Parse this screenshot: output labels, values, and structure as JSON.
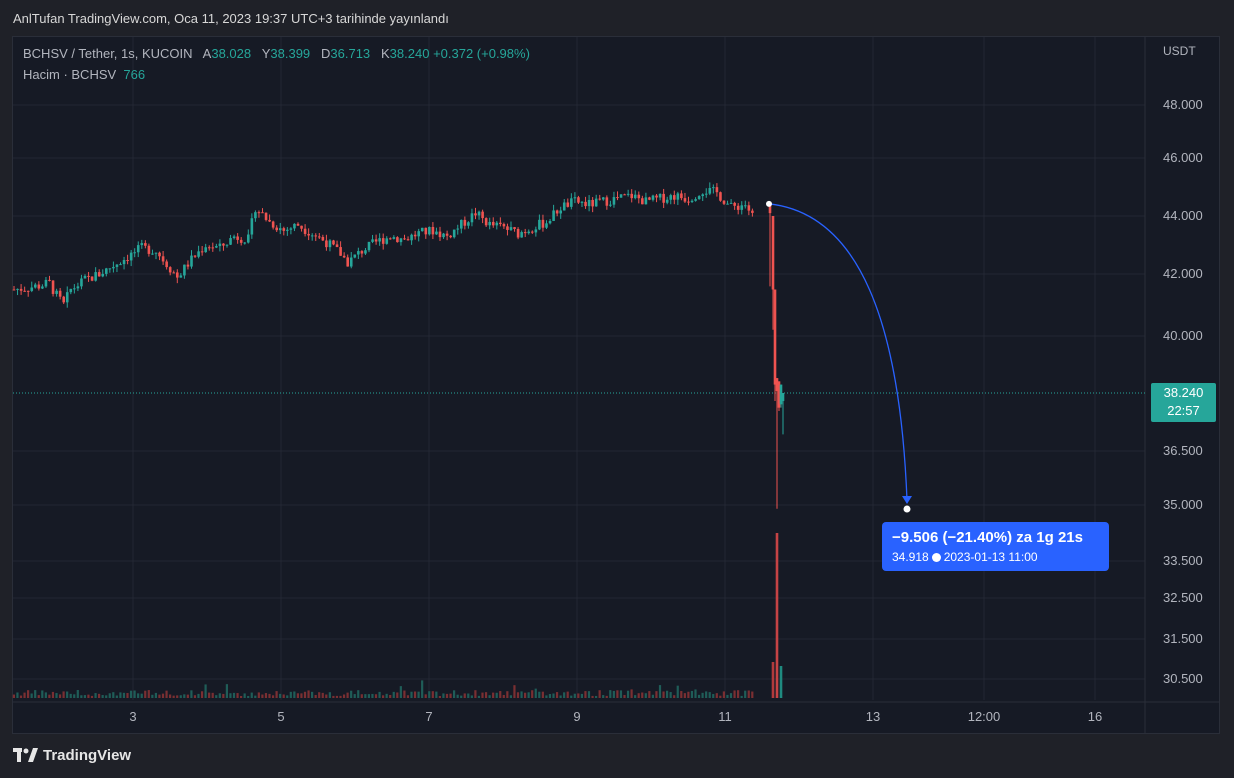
{
  "published_line": "AnlTufan TradingView.com, Oca 11, 2023 19:37 UTC+3 tarihinde yayınlandı",
  "legend": {
    "symbol": "BCHSV / Tether, 1s, KUCOIN",
    "a_label": "A",
    "a_value": "38.028",
    "y_label": "Y",
    "y_value": "38.399",
    "d_label": "D",
    "d_value": "36.713",
    "k_label": "K",
    "k_value": "38.240",
    "change": "+0.372 (+0.98%)",
    "volume_label": "Hacim · BCHSV",
    "volume_value": "766"
  },
  "price_box": {
    "price": "38.240",
    "countdown": "22:57"
  },
  "callout": {
    "line1": "−9.506 (−21.40%) za 1g 21s",
    "line2_price": "34.918",
    "line2_datetime": "2023-01-13  11:00"
  },
  "footer": {
    "brand": "TradingView"
  },
  "colors": {
    "up": "#26a69a",
    "down": "#ef5350",
    "accent": "#2962ff",
    "background": "#161a25"
  },
  "chart_data": {
    "type": "candlestick",
    "y_axis_unit": "USDT",
    "y_ticks": [
      "48.000",
      "46.000",
      "44.000",
      "42.000",
      "40.000",
      "36.500",
      "35.000",
      "33.500",
      "32.500",
      "31.500",
      "30.500"
    ],
    "x_ticks": [
      "3",
      "5",
      "7",
      "9",
      "11",
      "13",
      "12:00",
      "16"
    ],
    "last_price": 38.24,
    "close_path": [
      [
        0,
        41.5
      ],
      [
        3,
        41.6
      ],
      [
        5,
        41.7
      ],
      [
        6,
        41.3
      ],
      [
        7,
        41.0
      ],
      [
        8,
        41.5
      ],
      [
        10,
        41.8
      ],
      [
        12,
        42.0
      ],
      [
        14,
        42.3
      ],
      [
        16,
        42.6
      ],
      [
        18,
        42.9
      ],
      [
        20,
        42.8
      ],
      [
        22,
        42.2
      ],
      [
        23,
        41.9
      ],
      [
        25,
        42.5
      ],
      [
        27,
        43.0
      ],
      [
        29,
        42.9
      ],
      [
        31,
        43.3
      ],
      [
        33,
        43.2
      ],
      [
        34,
        44.3
      ],
      [
        36,
        43.8
      ],
      [
        38,
        43.5
      ],
      [
        40,
        43.7
      ],
      [
        42,
        43.4
      ],
      [
        44,
        43.1
      ],
      [
        46,
        42.7
      ],
      [
        47,
        42.4
      ],
      [
        49,
        42.8
      ],
      [
        51,
        43.1
      ],
      [
        53,
        43.3
      ],
      [
        55,
        43.2
      ],
      [
        57,
        43.4
      ],
      [
        59,
        43.5
      ],
      [
        61,
        43.3
      ],
      [
        63,
        43.7
      ],
      [
        65,
        44.1
      ],
      [
        67,
        43.7
      ],
      [
        69,
        43.6
      ],
      [
        71,
        43.4
      ],
      [
        73,
        43.6
      ],
      [
        75,
        43.8
      ],
      [
        77,
        44.3
      ],
      [
        79,
        44.5
      ],
      [
        81,
        44.4
      ],
      [
        83,
        44.5
      ],
      [
        85,
        44.6
      ],
      [
        87,
        44.7
      ],
      [
        89,
        44.5
      ],
      [
        91,
        44.6
      ],
      [
        93,
        44.7
      ],
      [
        95,
        44.6
      ],
      [
        97,
        44.9
      ],
      [
        99,
        44.8
      ],
      [
        101,
        44.3
      ],
      [
        103,
        44.4
      ],
      [
        104,
        44.0
      ],
      [
        104.5,
        41.5
      ],
      [
        105,
        40.0
      ],
      [
        105.3,
        35.0
      ],
      [
        105.6,
        38.0
      ],
      [
        106,
        38.24
      ]
    ],
    "volume_spikes": [
      [
        104.5,
        950
      ],
      [
        105,
        1100
      ],
      [
        105.5,
        3000
      ]
    ],
    "projection": {
      "from_price": 44.42,
      "to_price": 34.918,
      "change": "−9.506",
      "percent": "−21.40%"
    }
  }
}
